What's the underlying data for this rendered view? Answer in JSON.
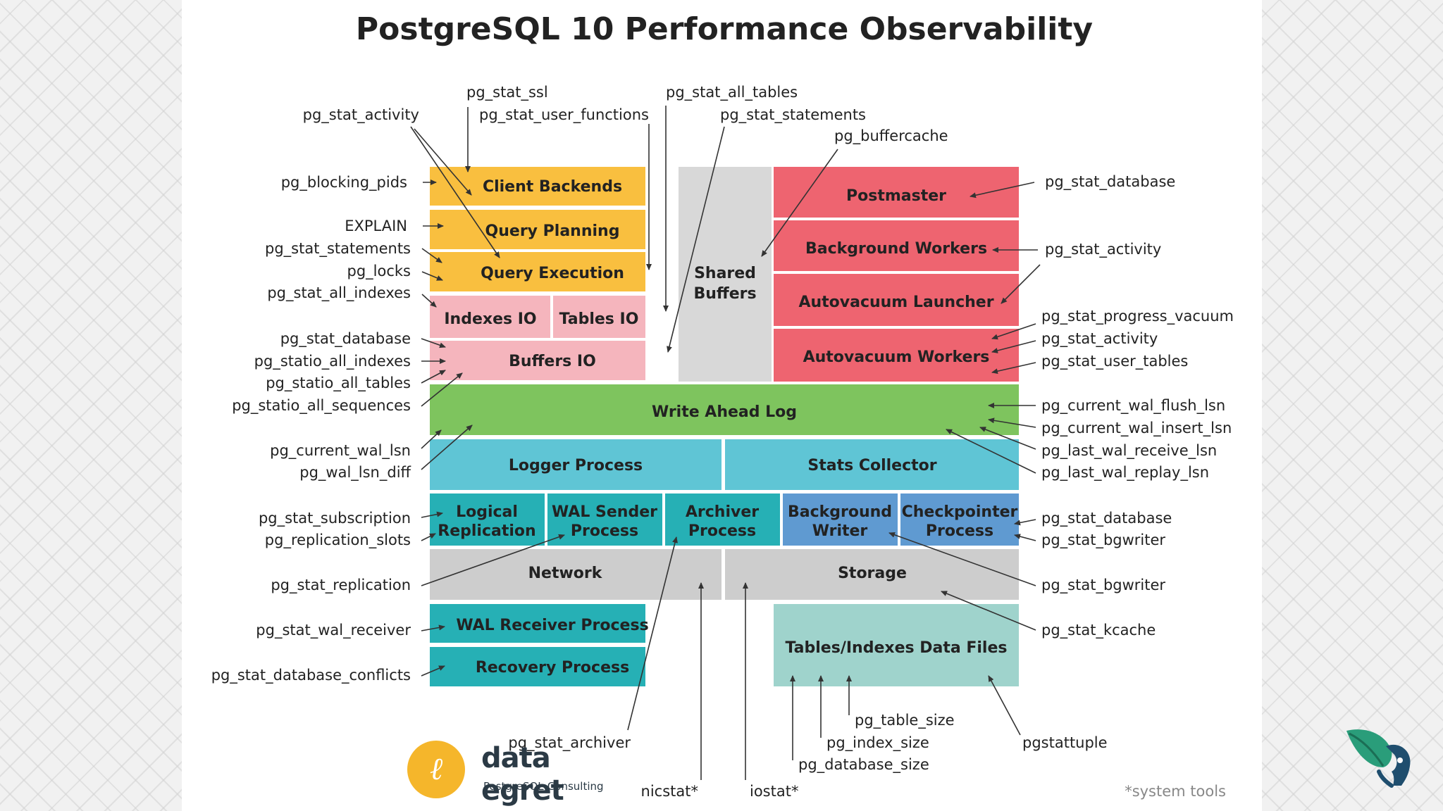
{
  "title": "PostgreSQL 10 Performance Observability",
  "blocks": {
    "client_backends": "Client Backends",
    "query_planning": "Query Planning",
    "query_execution": "Query Execution",
    "indexes_io": "Indexes IO",
    "tables_io": "Tables IO",
    "buffers_io": "Buffers IO",
    "shared_buffers_1": "Shared",
    "shared_buffers_2": "Buffers",
    "postmaster": "Postmaster",
    "background_workers": "Background Workers",
    "autovacuum_launcher": "Autovacuum Launcher",
    "autovacuum_workers": "Autovacuum Workers",
    "write_ahead_log": "Write Ahead Log",
    "logger_process": "Logger Process",
    "stats_collector": "Stats Collector",
    "logical_replication_1": "Logical",
    "logical_replication_2": "Replication",
    "wal_sender_1": "WAL Sender",
    "wal_sender_2": "Process",
    "archiver_1": "Archiver",
    "archiver_2": "Process",
    "bg_writer_1": "Background",
    "bg_writer_2": "Writer",
    "checkpointer_1": "Checkpointer",
    "checkpointer_2": "Process",
    "network": "Network",
    "storage": "Storage",
    "wal_receiver": "WAL Receiver Process",
    "recovery_process": "Recovery Process",
    "data_files": "Tables/Indexes Data Files"
  },
  "labels": {
    "top_pg_stat_activity": "pg_stat_activity",
    "top_pg_stat_ssl": "pg_stat_ssl",
    "top_pg_stat_user_functions": "pg_stat_user_functions",
    "top_pg_stat_all_tables": "pg_stat_all_tables",
    "top_pg_stat_statements": "pg_stat_statements",
    "top_pg_buffercache": "pg_buffercache",
    "left_pg_blocking_pids": "pg_blocking_pids",
    "left_explain": "EXPLAIN",
    "left_pg_stat_statements": "pg_stat_statements",
    "left_pg_locks": "pg_locks",
    "left_pg_stat_all_indexes": "pg_stat_all_indexes",
    "left_pg_stat_database": "pg_stat_database",
    "left_pg_statio_all_indexes": "pg_statio_all_indexes",
    "left_pg_statio_all_tables": "pg_statio_all_tables",
    "left_pg_statio_all_sequences": "pg_statio_all_sequences",
    "left_pg_current_wal_lsn": "pg_current_wal_lsn",
    "left_pg_wal_lsn_diff": "pg_wal_lsn_diff",
    "left_pg_stat_subscription": "pg_stat_subscription",
    "left_pg_replication_slots": "pg_replication_slots",
    "left_pg_stat_replication": "pg_stat_replication",
    "left_pg_stat_wal_receiver": "pg_stat_wal_receiver",
    "left_pg_stat_database_conflicts": "pg_stat_database_conflicts",
    "right_pg_stat_database": "pg_stat_database",
    "right_pg_stat_activity": "pg_stat_activity",
    "right_pg_stat_progress_vacuum": "pg_stat_progress_vacuum",
    "right_pg_stat_activity_2": "pg_stat_activity",
    "right_pg_stat_user_tables": "pg_stat_user_tables",
    "right_pg_current_wal_flush_lsn": "pg_current_wal_flush_lsn",
    "right_pg_current_wal_insert_lsn": "pg_current_wal_insert_lsn",
    "right_pg_last_wal_receive_lsn": "pg_last_wal_receive_lsn",
    "right_pg_last_wal_replay_lsn": "pg_last_wal_replay_lsn",
    "right_pg_stat_database_2": "pg_stat_database",
    "right_pg_stat_bgwriter": "pg_stat_bgwriter",
    "right_pg_stat_bgwriter_2": "pg_stat_bgwriter",
    "right_pg_stat_kcache": "pg_stat_kcache",
    "bottom_pg_stat_archiver": "pg_stat_archiver",
    "bottom_nicstat": "nicstat*",
    "bottom_iostat": "iostat*",
    "bottom_pg_table_size": "pg_table_size",
    "bottom_pg_index_size": "pg_index_size",
    "bottom_pg_database_size": "pg_database_size",
    "bottom_pgstattuple": "pgstattuple",
    "system_tools": "*system tools"
  },
  "brand": {
    "name": "data egret",
    "subtitle": "PostgreSQL-Consulting",
    "logo_glyph": "ℓ"
  },
  "icons": {
    "brand_logo": "data-egret-logo",
    "corner_logo": "elephant-leaf-logo"
  },
  "colors": {
    "client": "#f9bf3f",
    "io": "#f5b5bd",
    "shared": "#d8d8d8",
    "server": "#ee6470",
    "wal": "#7ec45e",
    "process": "#5fc5d5",
    "replication": "#26b0b5",
    "writer": "#5f9ad1",
    "storage": "#cdcdcd",
    "datafiles": "#9fd3cc"
  }
}
